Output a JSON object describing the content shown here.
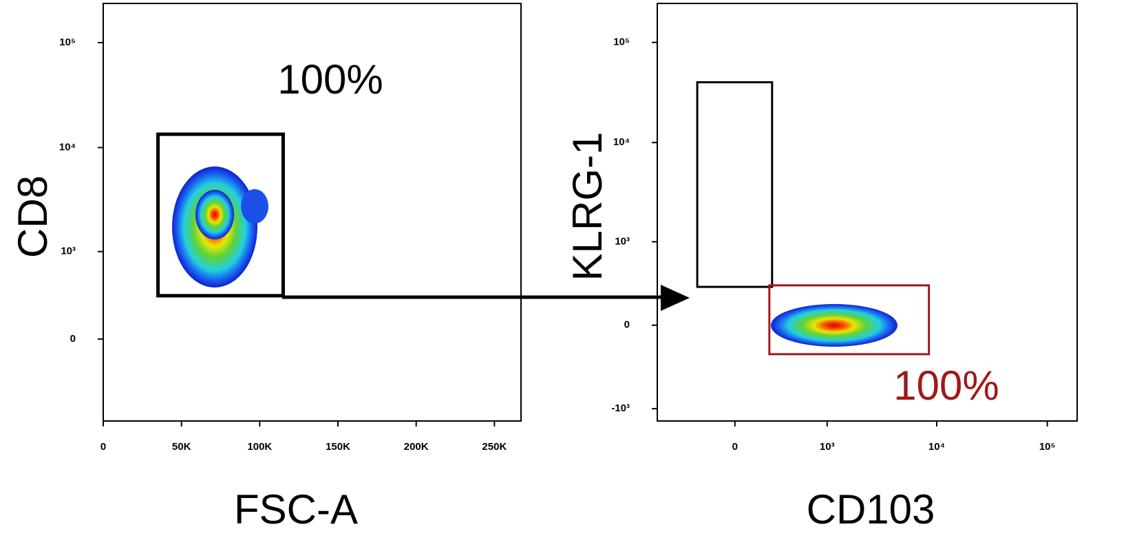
{
  "chart_data": [
    {
      "type": "density",
      "xlabel": "FSC-A",
      "ylabel": "CD8",
      "xscale": "linear",
      "yscale": "asinh",
      "xlim": [
        0,
        267000
      ],
      "ylim": [
        -880,
        236000
      ],
      "xticks": [
        0,
        {
          "value": 50000,
          "label": "50K"
        },
        {
          "value": 100000,
          "label": "100K"
        },
        {
          "value": 150000,
          "label": "150K"
        },
        {
          "value": 200000,
          "label": "200K"
        },
        {
          "value": 250000,
          "label": "250K"
        }
      ],
      "yticks": [
        0,
        {
          "value": 1000,
          "label": "10³"
        },
        {
          "value": 10000,
          "label": "10⁴"
        },
        {
          "value": 100000,
          "label": "10⁵"
        }
      ],
      "gates": [
        {
          "x": [
            35000,
            115000
          ],
          "y": [
            330,
            13400
          ],
          "color": "#000000",
          "annotation": "100%",
          "annotation_color": "#000000"
        }
      ]
    },
    {
      "type": "density",
      "xlabel": "CD103",
      "ylabel": "KLRG-1",
      "xscale": "asinh",
      "yscale": "asinh",
      "xlim": [
        -725,
        186000
      ],
      "ylim": [
        -1340,
        245000
      ],
      "xticks": [
        0,
        {
          "value": 1000,
          "label": "10³"
        },
        {
          "value": 10000,
          "label": "10⁴"
        },
        {
          "value": 100000,
          "label": "10⁵"
        }
      ],
      "yticks": [
        {
          "value": -1000,
          "label": "-10³"
        },
        0,
        {
          "value": 1000,
          "label": "10³"
        },
        {
          "value": 10000,
          "label": "10⁴"
        },
        {
          "value": 100000,
          "label": "10⁵"
        }
      ],
      "gates": [
        {
          "x": [
            -260,
            256
          ],
          "y": [
            300,
            40000
          ],
          "color": "#000000"
        },
        {
          "x": [
            234,
            8500
          ],
          "y": [
            -215,
            315
          ],
          "color": "#a01818",
          "annotation": "100%",
          "annotation_color": "#a01818"
        }
      ]
    }
  ]
}
